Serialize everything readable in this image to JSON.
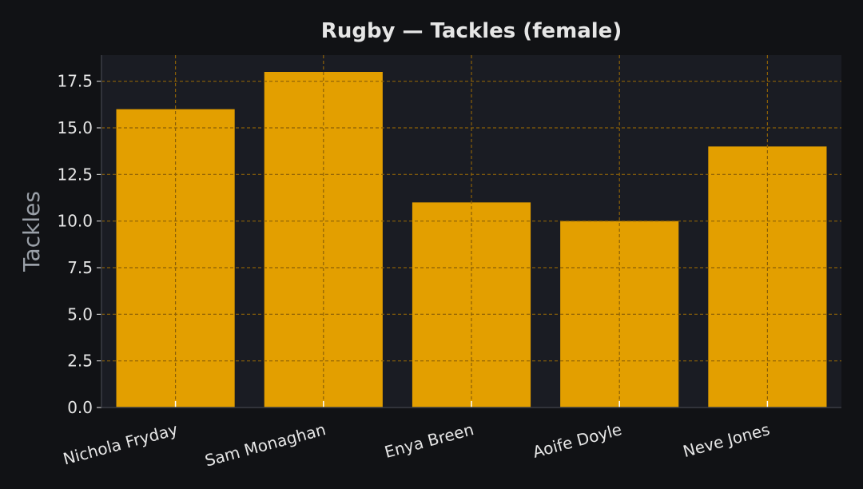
{
  "chart_data": {
    "type": "bar",
    "title": "Rugby — Tackles (female)",
    "xlabel": "",
    "ylabel": "Tackles",
    "categories": [
      "Nichola Fryday",
      "Sam Monaghan",
      "Enya Breen",
      "Aoife Doyle",
      "Neve Jones"
    ],
    "values": [
      16,
      18,
      11,
      10,
      14
    ],
    "ylim": [
      0,
      18.9
    ],
    "yticks": [
      "0.0",
      "2.5",
      "5.0",
      "7.5",
      "10.0",
      "12.5",
      "15.0",
      "17.5"
    ],
    "grid": true,
    "legend": "none"
  },
  "colors": {
    "page_background": "#111215",
    "plot_background": "#1a1c23",
    "bar": "#e39f00",
    "gridline_over_bars": "#8a5f07",
    "gridline_background": "#2a2d34",
    "text": "#e6e6e6",
    "ylabel": "#9aa0a8",
    "axis": "#3a3d44"
  }
}
